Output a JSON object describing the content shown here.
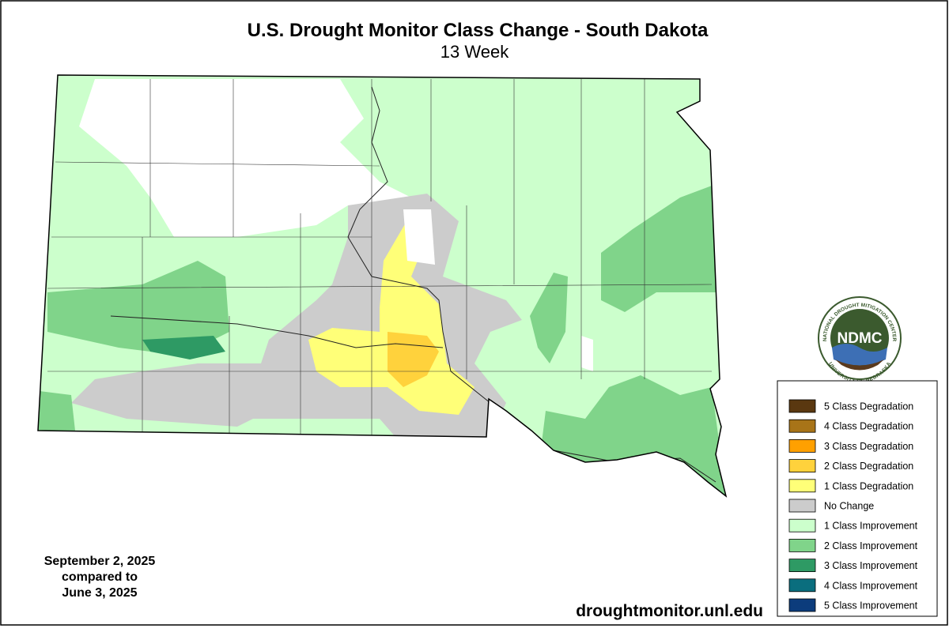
{
  "header": {
    "title": "U.S. Drought Monitor Class Change - South Dakota",
    "subtitle": "13 Week"
  },
  "legend": {
    "items": [
      {
        "label": "5 Class Degradation",
        "color": "#5a3810"
      },
      {
        "label": "4 Class Degradation",
        "color": "#a87418"
      },
      {
        "label": "3 Class Degradation",
        "color": "#ffa000"
      },
      {
        "label": "2 Class Degradation",
        "color": "#ffd23c"
      },
      {
        "label": "1 Class Degradation",
        "color": "#ffff78"
      },
      {
        "label": "No Change",
        "color": "#cccccc"
      },
      {
        "label": "1 Class Improvement",
        "color": "#ccffcc"
      },
      {
        "label": "2 Class Improvement",
        "color": "#80d48a"
      },
      {
        "label": "3 Class Improvement",
        "color": "#2e9a64"
      },
      {
        "label": "4 Class Improvement",
        "color": "#0a6e7e"
      },
      {
        "label": "5 Class Improvement",
        "color": "#0c3c7c"
      }
    ]
  },
  "dates": {
    "lines": [
      "September 2, 2025",
      "compared to",
      "June 3, 2025"
    ]
  },
  "logo": {
    "name": "NDMC",
    "ring_top": "NATIONAL DROUGHT MITIGATION CENTER",
    "ring_bottom": "UNIVERSITY OF NEBRASKA"
  },
  "footer": {
    "url": "droughtmonitor.unl.edu"
  }
}
